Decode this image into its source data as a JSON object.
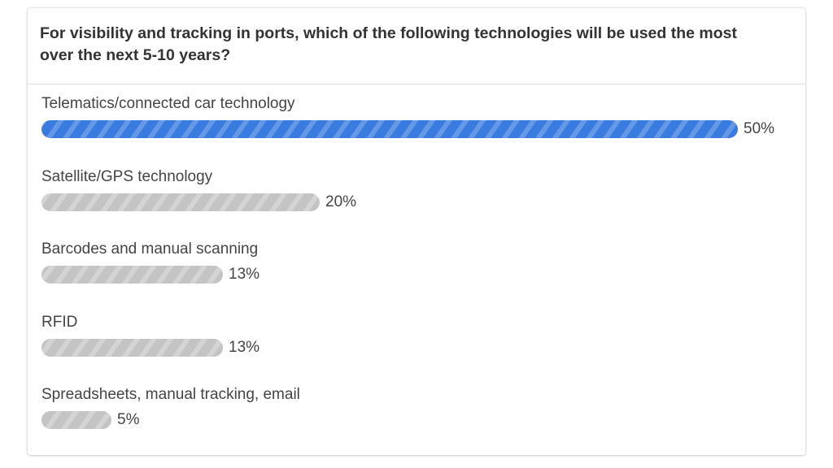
{
  "poll": {
    "question": "For visibility and tracking in ports, which of the following technologies will be used the most over the next 5-10 years?"
  },
  "colors": {
    "selected_bar": "#3a7be0",
    "other_bar": "#c4c4c4"
  },
  "chart_data": {
    "type": "bar",
    "orientation": "horizontal",
    "title": "For visibility and tracking in ports, which of the following technologies will be used the most over the next 5-10 years?",
    "categories": [
      "Telematics/connected car technology",
      "Satellite/GPS technology",
      "Barcodes and manual scanning",
      "RFID",
      "Spreadsheets, manual tracking, email"
    ],
    "values": [
      50,
      20,
      13,
      13,
      5
    ],
    "value_labels": [
      "50%",
      "20%",
      "13%",
      "13%",
      "5%"
    ],
    "highlighted_index": 0,
    "xlim": [
      0,
      50
    ],
    "grid": false
  }
}
